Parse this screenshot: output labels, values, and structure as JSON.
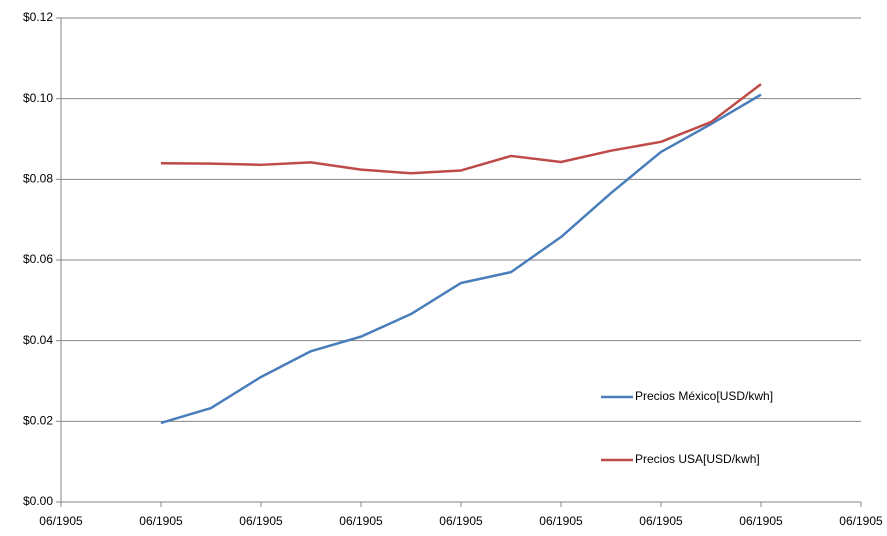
{
  "chart_data": {
    "type": "line",
    "x": [
      1998,
      1999,
      2000,
      2001,
      2002,
      2003,
      2004,
      2005,
      2006,
      2007,
      2008,
      2009,
      2010
    ],
    "series": [
      {
        "name": "Precios México[USD/kwh]",
        "color": "#4a7ebb",
        "values": [
          0.0196,
          0.0233,
          0.031,
          0.0374,
          0.041,
          0.0466,
          0.0543,
          0.057,
          0.0657,
          0.0766,
          0.0868,
          0.0937,
          0.101
        ]
      },
      {
        "name": "Precios USA[USD/kwh]",
        "color": "#be4b48",
        "values": [
          0.084,
          0.0839,
          0.0836,
          0.0842,
          0.0824,
          0.0815,
          0.0822,
          0.0858,
          0.0843,
          0.0871,
          0.0893,
          0.0942,
          0.1036
        ]
      }
    ],
    "xlim": [
      1996,
      2012
    ],
    "xticks": [
      {
        "value": 1996,
        "label": "06/1905"
      },
      {
        "value": 1998,
        "label": "06/1905"
      },
      {
        "value": 2000,
        "label": "06/1905"
      },
      {
        "value": 2002,
        "label": "06/1905"
      },
      {
        "value": 2004,
        "label": "06/1905"
      },
      {
        "value": 2006,
        "label": "06/1905"
      },
      {
        "value": 2008,
        "label": "06/1905"
      },
      {
        "value": 2010,
        "label": "06/1905"
      },
      {
        "value": 2012,
        "label": "06/1905"
      }
    ],
    "ylim": [
      0,
      0.12
    ],
    "yticks": [
      {
        "value": 0,
        "label": "$0.00"
      },
      {
        "value": 0.02,
        "label": "$0.02"
      },
      {
        "value": 0.04,
        "label": "$0.04"
      },
      {
        "value": 0.06,
        "label": "$0.06"
      },
      {
        "value": 0.08,
        "label": "$0.08"
      },
      {
        "value": 0.1,
        "label": "$0.10"
      },
      {
        "value": 0.12,
        "label": "$0.12"
      }
    ],
    "grid": true,
    "legend": "right"
  }
}
